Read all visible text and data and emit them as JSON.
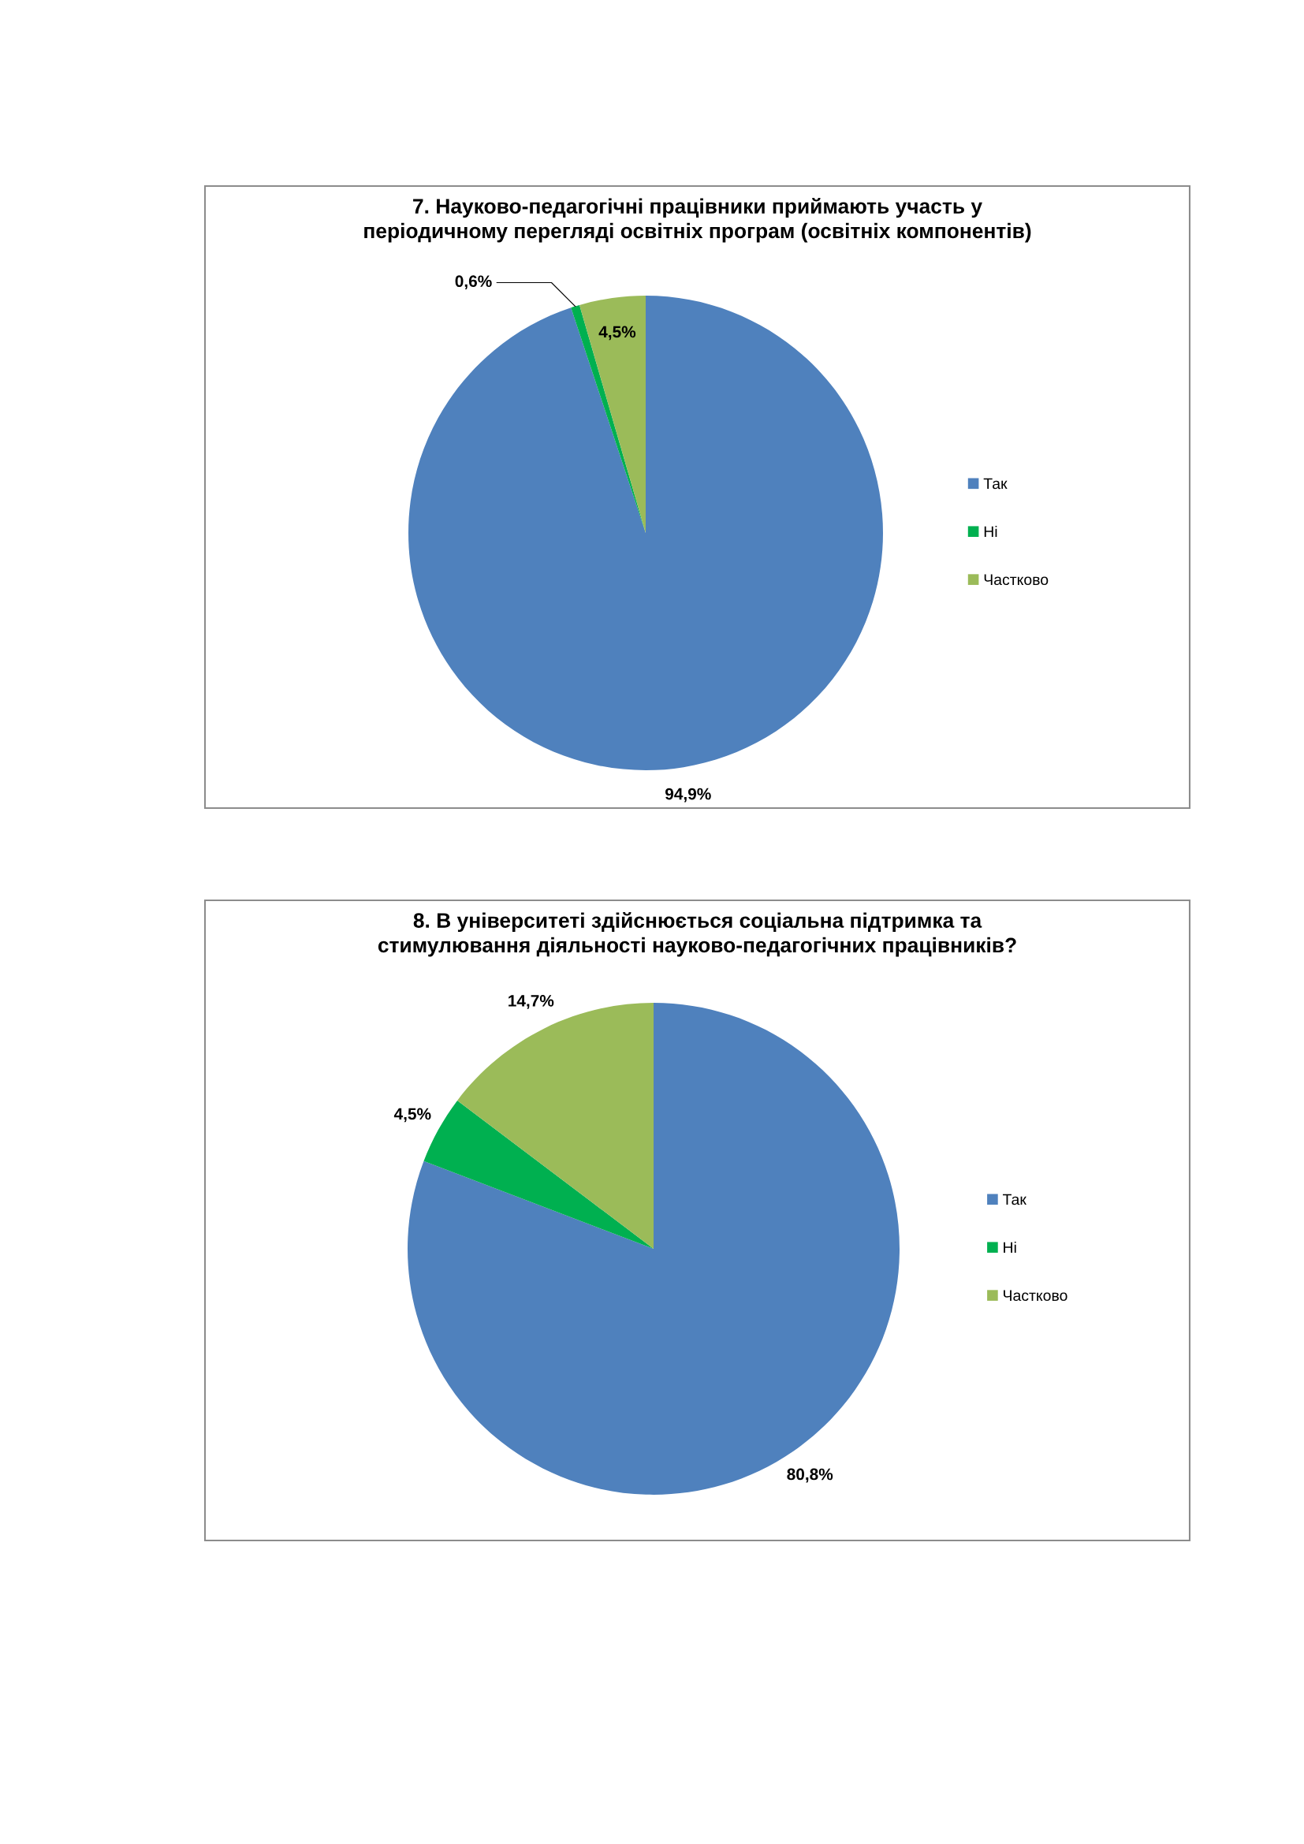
{
  "chart_data": [
    {
      "type": "pie",
      "title": "7. Науково-педагогічні працівники приймають участь у періодичному перегляді освітніх програм (освітніх компонентів)",
      "categories": [
        "Так",
        "Ні",
        "Частково"
      ],
      "values": [
        94.9,
        0.6,
        4.5
      ],
      "value_labels": [
        "94,9%",
        "0,6%",
        "4,5%"
      ],
      "colors": [
        "#4f81bd",
        "#00b050",
        "#9bbb59"
      ],
      "legend": "right"
    },
    {
      "type": "pie",
      "title": "8. В університеті здійснюється соціальна підтримка та стимулювання діяльності науково-педагогічних працівників?",
      "categories": [
        "Так",
        "Ні",
        "Частково"
      ],
      "values": [
        80.8,
        4.5,
        14.7
      ],
      "value_labels": [
        "80,8%",
        "4,5%",
        "14,7%"
      ],
      "colors": [
        "#4f81bd",
        "#00b050",
        "#9bbb59"
      ],
      "legend": "right"
    }
  ]
}
